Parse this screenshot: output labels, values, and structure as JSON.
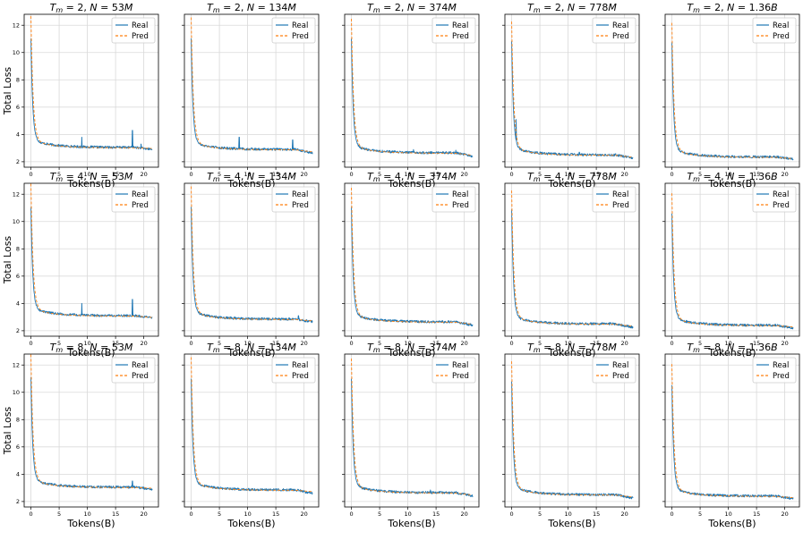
{
  "figure": {
    "ylabel_rows": "Total Loss",
    "xlabel_cols": "Tokens(B)"
  },
  "chart_data": {
    "type": "line",
    "layout": "3x5 grid of subplots (rows: T_m = 2, 4, 8; columns: N = 53M, 134M, 374M, 778M, 1.36B)",
    "shared_y_axis": true,
    "xlim": [
      -1.2,
      22.6
    ],
    "ylim": [
      1.6,
      12.8
    ],
    "xticks": [
      0,
      5,
      10,
      15,
      20
    ],
    "yticks": [
      2,
      4,
      6,
      8,
      10,
      12
    ],
    "grid": true,
    "legend": {
      "entries": [
        "Real",
        "Pred"
      ],
      "placement": "top-right"
    },
    "series_colors": {
      "Real": "#1f77b4",
      "Pred": "#ff7f0e"
    },
    "series_styles": {
      "Real": "solid",
      "Pred": "dashed"
    },
    "panels": [
      {
        "title": "T_m = 2, N = 53M",
        "tm": "2",
        "n": "53M",
        "real": {
          "start": 10.5,
          "plateau": 3.05,
          "end": 2.9,
          "spikes": [
            [
              9,
              3.8
            ],
            [
              18,
              4.3
            ],
            [
              19.5,
              3.3
            ]
          ]
        },
        "pred": {
          "start": 12.1,
          "plateau": 3.0,
          "end": 2.95
        }
      },
      {
        "title": "T_m = 2, N = 134M",
        "tm": "2",
        "n": "134M",
        "real": {
          "start": 10.5,
          "plateau": 2.9,
          "end": 2.65,
          "spikes": [
            [
              8.5,
              3.8
            ],
            [
              18,
              3.6
            ]
          ]
        },
        "pred": {
          "start": 12.0,
          "plateau": 2.85,
          "end": 2.7
        }
      },
      {
        "title": "T_m = 2, N = 374M",
        "tm": "2",
        "n": "374M",
        "real": {
          "start": 10.5,
          "plateau": 2.65,
          "end": 2.4,
          "spikes": [
            [
              11,
              2.9
            ],
            [
              18.5,
              2.85
            ]
          ]
        },
        "pred": {
          "start": 11.9,
          "plateau": 2.6,
          "end": 2.45
        }
      },
      {
        "title": "T_m = 2, N = 778M",
        "tm": "2",
        "n": "778M",
        "real": {
          "start": 10.3,
          "plateau": 2.5,
          "end": 2.25,
          "spikes": [
            [
              0.8,
              5.1
            ],
            [
              12,
              2.7
            ]
          ]
        },
        "pred": {
          "start": 11.7,
          "plateau": 2.45,
          "end": 2.3
        }
      },
      {
        "title": "T_m = 2, N = 1.36B",
        "tm": "2",
        "n": "1.36B",
        "real": {
          "start": 10.2,
          "plateau": 2.35,
          "end": 2.2,
          "spikes": []
        },
        "pred": {
          "start": 11.6,
          "plateau": 2.3,
          "end": 2.2
        }
      },
      {
        "title": "T_m = 4, N = 53M",
        "tm": "4",
        "n": "53M",
        "real": {
          "start": 10.5,
          "plateau": 3.1,
          "end": 2.95,
          "spikes": [
            [
              9,
              4.0
            ],
            [
              18,
              4.3
            ]
          ]
        },
        "pred": {
          "start": 12.2,
          "plateau": 3.05,
          "end": 2.95
        }
      },
      {
        "title": "T_m = 4, N = 134M",
        "tm": "4",
        "n": "134M",
        "real": {
          "start": 10.5,
          "plateau": 2.85,
          "end": 2.65,
          "spikes": [
            [
              19,
              3.1
            ]
          ]
        },
        "pred": {
          "start": 12.0,
          "plateau": 2.8,
          "end": 2.7
        }
      },
      {
        "title": "T_m = 4, N = 374M",
        "tm": "4",
        "n": "374M",
        "real": {
          "start": 10.5,
          "plateau": 2.65,
          "end": 2.4,
          "spikes": []
        },
        "pred": {
          "start": 11.9,
          "plateau": 2.6,
          "end": 2.45
        }
      },
      {
        "title": "T_m = 4, N = 778M",
        "tm": "4",
        "n": "778M",
        "real": {
          "start": 10.3,
          "plateau": 2.5,
          "end": 2.25,
          "spikes": []
        },
        "pred": {
          "start": 11.7,
          "plateau": 2.45,
          "end": 2.3
        }
      },
      {
        "title": "T_m = 4, N = 1.36B",
        "tm": "4",
        "n": "1.36B",
        "real": {
          "start": 10.0,
          "plateau": 2.4,
          "end": 2.2,
          "spikes": []
        },
        "pred": {
          "start": 11.5,
          "plateau": 2.35,
          "end": 2.25
        }
      },
      {
        "title": "T_m = 8, N = 53M",
        "tm": "8",
        "n": "53M",
        "real": {
          "start": 10.5,
          "plateau": 3.05,
          "end": 2.9,
          "spikes": [
            [
              18,
              3.5
            ]
          ]
        },
        "pred": {
          "start": 12.2,
          "plateau": 3.0,
          "end": 2.95
        }
      },
      {
        "title": "T_m = 8, N = 134M",
        "tm": "8",
        "n": "134M",
        "real": {
          "start": 10.5,
          "plateau": 2.85,
          "end": 2.6,
          "spikes": []
        },
        "pred": {
          "start": 12.0,
          "plateau": 2.8,
          "end": 2.7
        }
      },
      {
        "title": "T_m = 8, N = 374M",
        "tm": "8",
        "n": "374M",
        "real": {
          "start": 10.5,
          "plateau": 2.65,
          "end": 2.4,
          "spikes": [
            [
              14,
              2.85
            ]
          ]
        },
        "pred": {
          "start": 11.9,
          "plateau": 2.6,
          "end": 2.45
        }
      },
      {
        "title": "T_m = 8, N = 778M",
        "tm": "8",
        "n": "778M",
        "real": {
          "start": 10.3,
          "plateau": 2.5,
          "end": 2.25,
          "spikes": []
        },
        "pred": {
          "start": 11.7,
          "plateau": 2.45,
          "end": 2.3
        }
      },
      {
        "title": "T_m = 8, N = 1.36B",
        "tm": "8",
        "n": "1.36B",
        "real": {
          "start": 10.0,
          "plateau": 2.4,
          "end": 2.2,
          "spikes": []
        },
        "pred": {
          "start": 11.5,
          "plateau": 2.35,
          "end": 2.25
        }
      }
    ]
  }
}
